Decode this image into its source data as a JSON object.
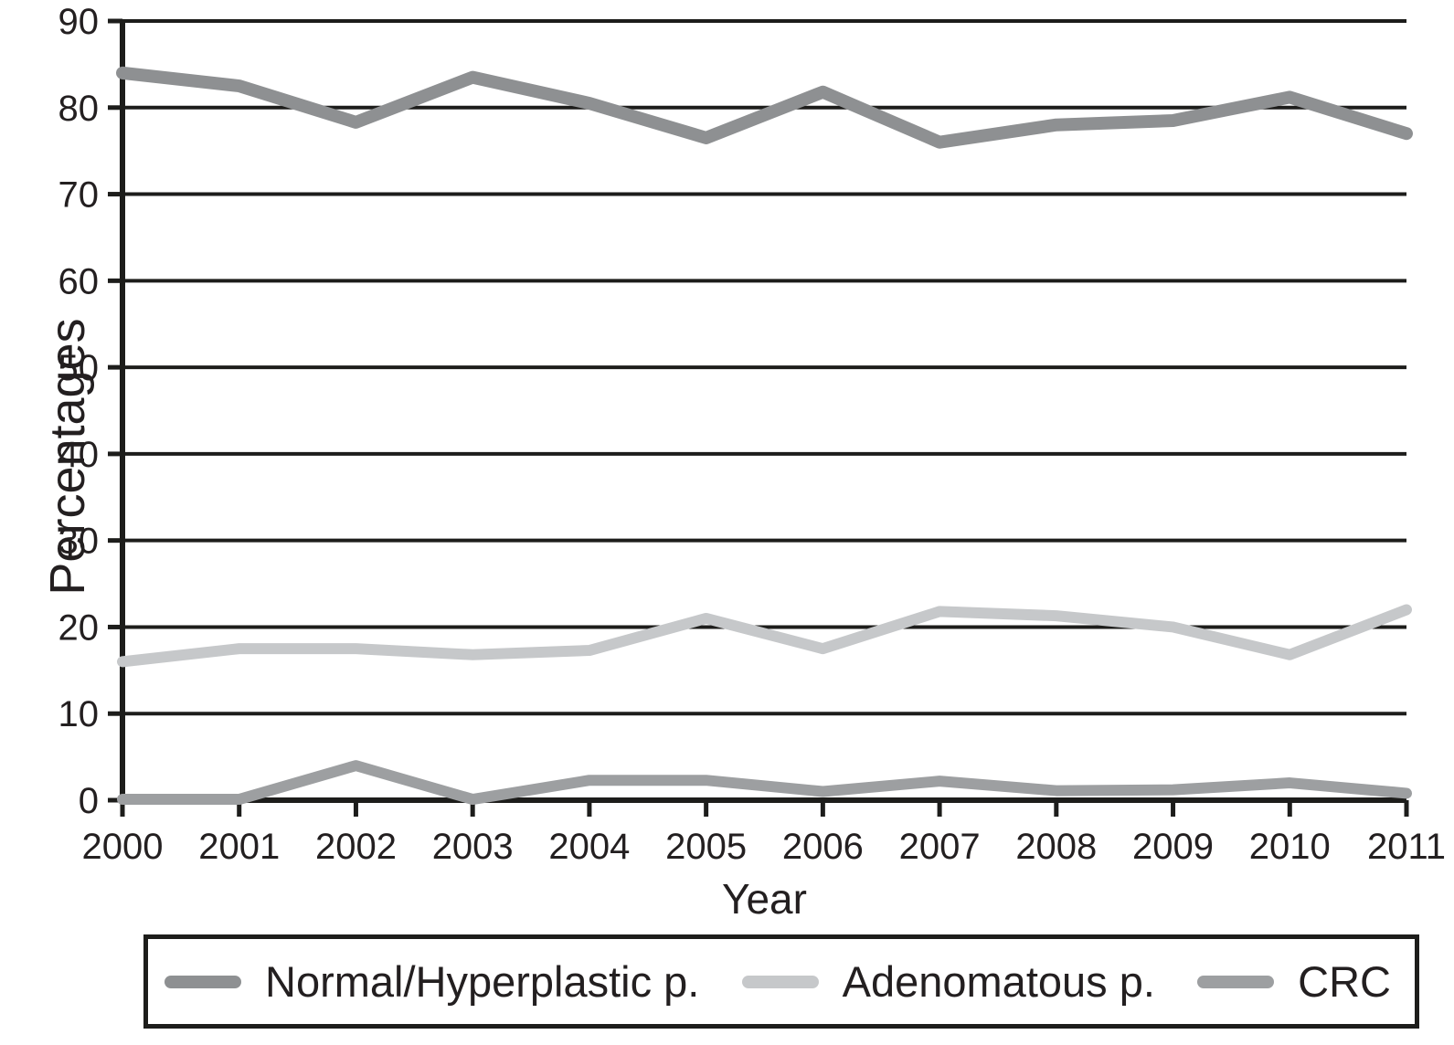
{
  "chart_data": {
    "type": "line",
    "title": "",
    "xlabel": "Year",
    "ylabel": "Percentages",
    "x": [
      "2000",
      "2001",
      "2002",
      "2003",
      "2004",
      "2005",
      "2006",
      "2007",
      "2008",
      "2009",
      "2010",
      "2011"
    ],
    "series": [
      {
        "name": "Normal/Hyperplastic p.",
        "color": "#8e9092",
        "values": [
          84,
          82.5,
          78.3,
          83.5,
          80.5,
          76.5,
          81.8,
          76,
          78,
          78.5,
          81.2,
          77
        ]
      },
      {
        "name": "Adenomatous p.",
        "color": "#c6c8ca",
        "values": [
          16,
          17.5,
          17.5,
          16.8,
          17.3,
          21,
          17.5,
          21.8,
          21.3,
          20,
          16.8,
          22
        ]
      },
      {
        "name": "CRC",
        "color": "#9d9fa1",
        "values": [
          0.1,
          0.1,
          4,
          0.1,
          2.3,
          2.3,
          1,
          2.2,
          1.1,
          1.2,
          2,
          0.8
        ]
      }
    ],
    "ylim": [
      0,
      90
    ],
    "yticks": [
      0,
      10,
      20,
      30,
      40,
      50,
      60,
      70,
      80,
      90
    ],
    "grid": true,
    "legend_position": "bottom",
    "axis_color": "#1d1d1b",
    "text_color": "#231f20"
  },
  "legend": {
    "items": [
      {
        "label": "Normal/Hyperplastic p."
      },
      {
        "label": "Adenomatous p."
      },
      {
        "label": "CRC"
      }
    ]
  }
}
